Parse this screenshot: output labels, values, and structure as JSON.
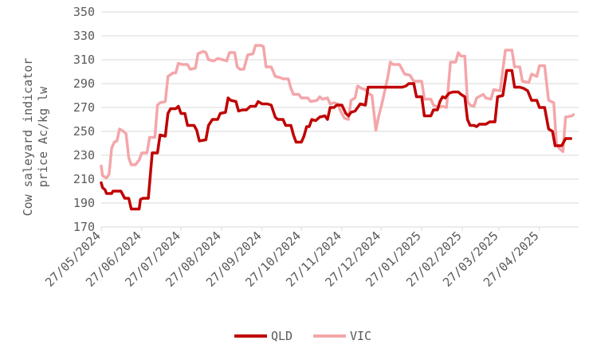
{
  "chart_data": {
    "type": "line",
    "ylabel_lines": [
      "Cow saleyard indicator",
      "price Ac/kg lw"
    ],
    "ylim": [
      170,
      350
    ],
    "yticks": [
      170,
      190,
      210,
      230,
      250,
      270,
      290,
      310,
      330,
      350
    ],
    "xlim": [
      "2024-05-27",
      "2025-05-27"
    ],
    "xticks": [
      "27/05/2024",
      "27/06/2024",
      "27/07/2024",
      "27/08/2024",
      "27/09/2024",
      "27/10/2024",
      "27/11/2024",
      "27/12/2024",
      "27/01/2025",
      "27/02/2025",
      "27/03/2025",
      "27/04/2025"
    ],
    "grid": "horizontal",
    "legend_position": "bottom",
    "series": [
      {
        "name": "QLD",
        "color": "#c00000",
        "points": [
          [
            "2024-05-27",
            207
          ],
          [
            "2024-05-28",
            203
          ],
          [
            "2024-05-30",
            201
          ],
          [
            "2024-05-31",
            198
          ],
          [
            "2024-06-04",
            198
          ],
          [
            "2024-06-05",
            200
          ],
          [
            "2024-06-11",
            200
          ],
          [
            "2024-06-12",
            198
          ],
          [
            "2024-06-14",
            194
          ],
          [
            "2024-06-17",
            194
          ],
          [
            "2024-06-19",
            185
          ],
          [
            "2024-06-25",
            185
          ],
          [
            "2024-06-26",
            193
          ],
          [
            "2024-06-28",
            194
          ],
          [
            "2024-07-02",
            194
          ],
          [
            "2024-07-05",
            232
          ],
          [
            "2024-07-09",
            232
          ],
          [
            "2024-07-11",
            247
          ],
          [
            "2024-07-15",
            246
          ],
          [
            "2024-07-17",
            265
          ],
          [
            "2024-07-19",
            269
          ],
          [
            "2024-07-23",
            269
          ],
          [
            "2024-07-25",
            271
          ],
          [
            "2024-07-27",
            265
          ],
          [
            "2024-07-30",
            265
          ],
          [
            "2024-08-01",
            255
          ],
          [
            "2024-08-06",
            255
          ],
          [
            "2024-08-08",
            251
          ],
          [
            "2024-08-10",
            242
          ],
          [
            "2024-08-15",
            243
          ],
          [
            "2024-08-17",
            255
          ],
          [
            "2024-08-20",
            260
          ],
          [
            "2024-08-24",
            260
          ],
          [
            "2024-08-26",
            265
          ],
          [
            "2024-08-30",
            266
          ],
          [
            "2024-09-01",
            278
          ],
          [
            "2024-09-03",
            276
          ],
          [
            "2024-09-07",
            275
          ],
          [
            "2024-09-09",
            267
          ],
          [
            "2024-09-12",
            268
          ],
          [
            "2024-09-15",
            268
          ],
          [
            "2024-09-18",
            271
          ],
          [
            "2024-09-22",
            271
          ],
          [
            "2024-09-24",
            275
          ],
          [
            "2024-09-27",
            273
          ],
          [
            "2024-10-01",
            273
          ],
          [
            "2024-10-04",
            272
          ],
          [
            "2024-10-07",
            262
          ],
          [
            "2024-10-09",
            260
          ],
          [
            "2024-10-13",
            260
          ],
          [
            "2024-10-15",
            255
          ],
          [
            "2024-10-19",
            255
          ],
          [
            "2024-10-21",
            247
          ],
          [
            "2024-10-23",
            241
          ],
          [
            "2024-10-27",
            241
          ],
          [
            "2024-10-29",
            246
          ],
          [
            "2024-10-31",
            254
          ],
          [
            "2024-11-02",
            254
          ],
          [
            "2024-11-04",
            260
          ],
          [
            "2024-11-07",
            259
          ],
          [
            "2024-11-10",
            262
          ],
          [
            "2024-11-14",
            263
          ],
          [
            "2024-11-16",
            260
          ],
          [
            "2024-11-18",
            270
          ],
          [
            "2024-11-21",
            270
          ],
          [
            "2024-11-23",
            272
          ],
          [
            "2024-11-27",
            272
          ],
          [
            "2024-11-30",
            265
          ],
          [
            "2024-12-02",
            263
          ],
          [
            "2024-12-04",
            266
          ],
          [
            "2024-12-07",
            267
          ],
          [
            "2024-12-09",
            270
          ],
          [
            "2024-12-11",
            273
          ],
          [
            "2024-12-15",
            272
          ],
          [
            "2024-12-17",
            287
          ],
          [
            "2024-12-25",
            287
          ],
          [
            "2025-01-05",
            287
          ],
          [
            "2025-01-12",
            287
          ],
          [
            "2025-01-15",
            288
          ],
          [
            "2025-01-17",
            290
          ],
          [
            "2025-01-21",
            290
          ],
          [
            "2025-01-23",
            279
          ],
          [
            "2025-01-27",
            279
          ],
          [
            "2025-01-29",
            263
          ],
          [
            "2025-02-03",
            263
          ],
          [
            "2025-02-05",
            268
          ],
          [
            "2025-02-08",
            268
          ],
          [
            "2025-02-10",
            275
          ],
          [
            "2025-02-12",
            279
          ],
          [
            "2025-02-14",
            278
          ],
          [
            "2025-02-17",
            282
          ],
          [
            "2025-02-20",
            283
          ],
          [
            "2025-02-24",
            283
          ],
          [
            "2025-02-26",
            281
          ],
          [
            "2025-03-01",
            279
          ],
          [
            "2025-03-03",
            260
          ],
          [
            "2025-03-05",
            255
          ],
          [
            "2025-03-08",
            255
          ],
          [
            "2025-03-10",
            254
          ],
          [
            "2025-03-12",
            256
          ],
          [
            "2025-03-17",
            256
          ],
          [
            "2025-03-20",
            258
          ],
          [
            "2025-03-24",
            258
          ],
          [
            "2025-03-26",
            279
          ],
          [
            "2025-03-30",
            280
          ],
          [
            "2025-04-02",
            301
          ],
          [
            "2025-04-06",
            301
          ],
          [
            "2025-04-08",
            287
          ],
          [
            "2025-04-12",
            287
          ],
          [
            "2025-04-15",
            286
          ],
          [
            "2025-04-18",
            284
          ],
          [
            "2025-04-21",
            276
          ],
          [
            "2025-04-25",
            276
          ],
          [
            "2025-04-27",
            270
          ],
          [
            "2025-05-01",
            270
          ],
          [
            "2025-05-04",
            252
          ],
          [
            "2025-05-07",
            250
          ],
          [
            "2025-05-09",
            238
          ],
          [
            "2025-05-14",
            238
          ],
          [
            "2025-05-17",
            244
          ],
          [
            "2025-05-21",
            244
          ]
        ]
      },
      {
        "name": "VIC",
        "color": "#f4a6aa",
        "points": [
          [
            "2024-05-27",
            221
          ],
          [
            "2024-05-28",
            213
          ],
          [
            "2024-05-31",
            211
          ],
          [
            "2024-06-02",
            214
          ],
          [
            "2024-06-04",
            236
          ],
          [
            "2024-06-06",
            241
          ],
          [
            "2024-06-08",
            242
          ],
          [
            "2024-06-10",
            252
          ],
          [
            "2024-06-13",
            250
          ],
          [
            "2024-06-15",
            248
          ],
          [
            "2024-06-17",
            228
          ],
          [
            "2024-06-19",
            222
          ],
          [
            "2024-06-22",
            222
          ],
          [
            "2024-06-25",
            226
          ],
          [
            "2024-06-27",
            232
          ],
          [
            "2024-07-01",
            232
          ],
          [
            "2024-07-03",
            245
          ],
          [
            "2024-07-07",
            245
          ],
          [
            "2024-07-09",
            272
          ],
          [
            "2024-07-11",
            274
          ],
          [
            "2024-07-15",
            275
          ],
          [
            "2024-07-17",
            296
          ],
          [
            "2024-07-21",
            299
          ],
          [
            "2024-07-23",
            299
          ],
          [
            "2024-07-25",
            307
          ],
          [
            "2024-07-28",
            306
          ],
          [
            "2024-08-01",
            306
          ],
          [
            "2024-08-03",
            302
          ],
          [
            "2024-08-07",
            303
          ],
          [
            "2024-08-09",
            315
          ],
          [
            "2024-08-13",
            317
          ],
          [
            "2024-08-15",
            316
          ],
          [
            "2024-08-17",
            310
          ],
          [
            "2024-08-21",
            309
          ],
          [
            "2024-08-24",
            311
          ],
          [
            "2024-08-28",
            310
          ],
          [
            "2024-08-31",
            309
          ],
          [
            "2024-09-02",
            316
          ],
          [
            "2024-09-06",
            316
          ],
          [
            "2024-09-08",
            304
          ],
          [
            "2024-09-10",
            302
          ],
          [
            "2024-09-13",
            302
          ],
          [
            "2024-09-16",
            314
          ],
          [
            "2024-09-20",
            315
          ],
          [
            "2024-09-22",
            322
          ],
          [
            "2024-09-26",
            322
          ],
          [
            "2024-09-28",
            321
          ],
          [
            "2024-09-30",
            304
          ],
          [
            "2024-10-04",
            304
          ],
          [
            "2024-10-07",
            296
          ],
          [
            "2024-10-11",
            295
          ],
          [
            "2024-10-13",
            294
          ],
          [
            "2024-10-17",
            294
          ],
          [
            "2024-10-19",
            286
          ],
          [
            "2024-10-21",
            281
          ],
          [
            "2024-10-25",
            281
          ],
          [
            "2024-10-27",
            278
          ],
          [
            "2024-11-01",
            278
          ],
          [
            "2024-11-03",
            275
          ],
          [
            "2024-11-08",
            276
          ],
          [
            "2024-11-10",
            279
          ],
          [
            "2024-11-12",
            277
          ],
          [
            "2024-11-16",
            278
          ],
          [
            "2024-11-18",
            273
          ],
          [
            "2024-11-21",
            274
          ],
          [
            "2024-11-24",
            273
          ],
          [
            "2024-11-26",
            267
          ],
          [
            "2024-11-29",
            261
          ],
          [
            "2024-12-02",
            260
          ],
          [
            "2024-12-04",
            276
          ],
          [
            "2024-12-07",
            278
          ],
          [
            "2024-12-09",
            288
          ],
          [
            "2024-12-12",
            286
          ],
          [
            "2024-12-15",
            285
          ],
          [
            "2024-12-17",
            282
          ],
          [
            "2024-12-20",
            280
          ],
          [
            "2024-12-23",
            251
          ],
          [
            "2024-12-25",
            262
          ],
          [
            "2024-12-28",
            275
          ],
          [
            "2025-01-01",
            295
          ],
          [
            "2025-01-03",
            308
          ],
          [
            "2025-01-05",
            306
          ],
          [
            "2025-01-10",
            306
          ],
          [
            "2025-01-14",
            298
          ],
          [
            "2025-01-18",
            297
          ],
          [
            "2025-01-21",
            292
          ],
          [
            "2025-01-27",
            292
          ],
          [
            "2025-01-29",
            277
          ],
          [
            "2025-02-03",
            277
          ],
          [
            "2025-02-05",
            272
          ],
          [
            "2025-02-09",
            270
          ],
          [
            "2025-02-12",
            271
          ],
          [
            "2025-02-15",
            270
          ],
          [
            "2025-02-18",
            308
          ],
          [
            "2025-02-22",
            308
          ],
          [
            "2025-02-24",
            316
          ],
          [
            "2025-02-26",
            313
          ],
          [
            "2025-03-01",
            313
          ],
          [
            "2025-03-03",
            275
          ],
          [
            "2025-03-05",
            272
          ],
          [
            "2025-03-08",
            271
          ],
          [
            "2025-03-10",
            278
          ],
          [
            "2025-03-15",
            281
          ],
          [
            "2025-03-17",
            278
          ],
          [
            "2025-03-21",
            277
          ],
          [
            "2025-03-23",
            285
          ],
          [
            "2025-03-28",
            284
          ],
          [
            "2025-03-30",
            301
          ],
          [
            "2025-04-01",
            318
          ],
          [
            "2025-04-06",
            318
          ],
          [
            "2025-04-08",
            304
          ],
          [
            "2025-04-12",
            304
          ],
          [
            "2025-04-14",
            292
          ],
          [
            "2025-04-19",
            291
          ],
          [
            "2025-04-21",
            298
          ],
          [
            "2025-04-25",
            296
          ],
          [
            "2025-04-27",
            305
          ],
          [
            "2025-05-01",
            305
          ],
          [
            "2025-05-04",
            276
          ],
          [
            "2025-05-08",
            274
          ],
          [
            "2025-05-10",
            240
          ],
          [
            "2025-05-12",
            236
          ],
          [
            "2025-05-15",
            233
          ],
          [
            "2025-05-17",
            262
          ],
          [
            "2025-05-22",
            263
          ],
          [
            "2025-05-23",
            264
          ]
        ]
      }
    ]
  }
}
